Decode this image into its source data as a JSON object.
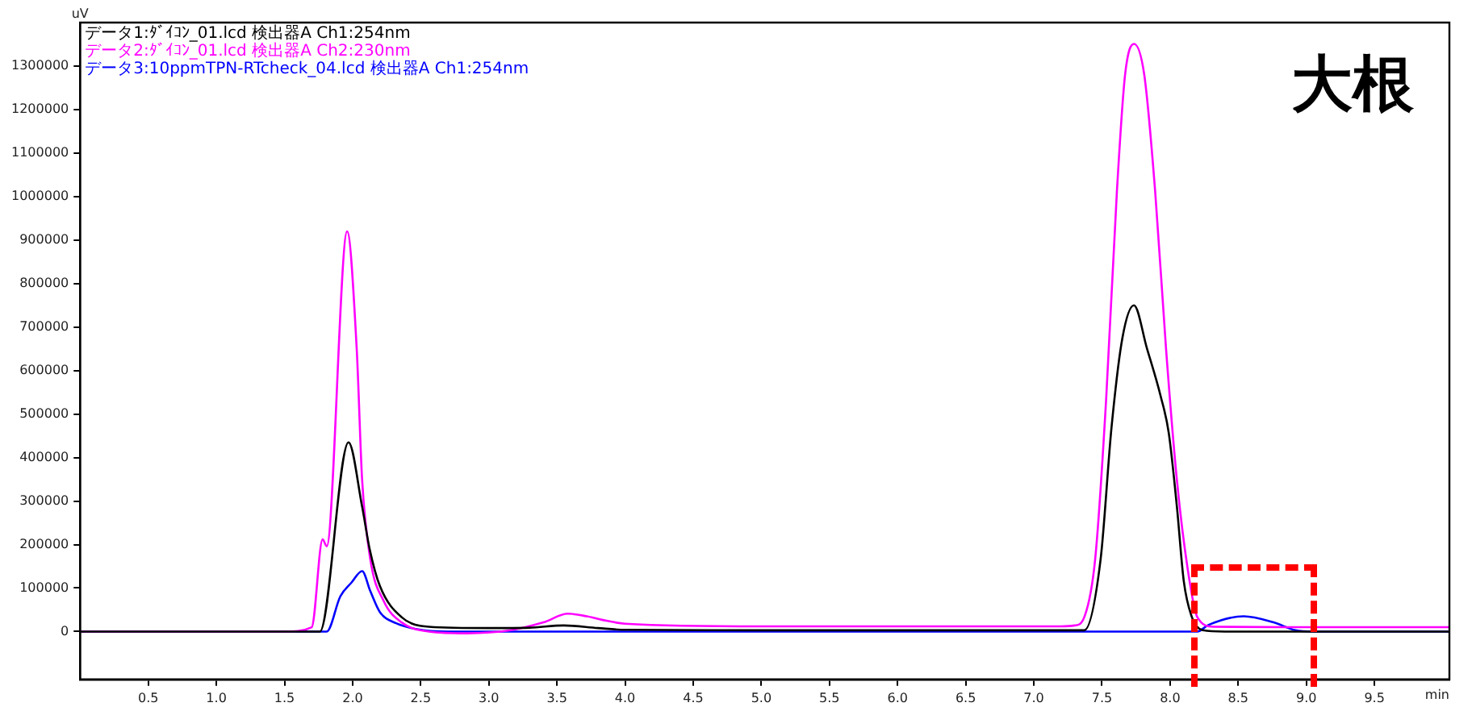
{
  "chart_data": {
    "type": "line",
    "xlabel": "min",
    "ylabel": "uV",
    "annotations": [
      "大根"
    ],
    "legend": "top left",
    "marker": "none",
    "line_style": "solid",
    "grid": false,
    "xlim": [
      0,
      10.05
    ],
    "xticks": [
      {
        "value": 0.5,
        "label": "0.5"
      },
      {
        "value": 1,
        "label": "1.0"
      },
      {
        "value": 1.5,
        "label": "1.5"
      },
      {
        "value": 2,
        "label": "2.0"
      },
      {
        "value": 2.5,
        "label": "2.5"
      },
      {
        "value": 3,
        "label": "3.0"
      },
      {
        "value": 3.5,
        "label": "3.5"
      },
      {
        "value": 4,
        "label": "4.0"
      },
      {
        "value": 4.5,
        "label": "4.5"
      },
      {
        "value": 5,
        "label": "5.0"
      },
      {
        "value": 5.5,
        "label": "5.5"
      },
      {
        "value": 6,
        "label": "6.0"
      },
      {
        "value": 6.5,
        "label": "6.5"
      },
      {
        "value": 7,
        "label": "7.0"
      },
      {
        "value": 7.5,
        "label": "7.5"
      },
      {
        "value": 8,
        "label": "8.0"
      },
      {
        "value": 8.5,
        "label": "8.5"
      },
      {
        "value": 9,
        "label": "9.0"
      },
      {
        "value": 9.5,
        "label": "9.5"
      }
    ],
    "ylim": [
      -110000,
      1400000
    ],
    "yticks": [
      0,
      100000,
      200000,
      300000,
      400000,
      500000,
      600000,
      700000,
      800000,
      900000,
      1000000,
      1100000,
      1200000,
      1300000
    ],
    "series": [
      {
        "name": "データ1:ﾀﾞｲｺﾝ_01.lcd 検出器A Ch1:254nm",
        "color": "#000000",
        "x": [
          0,
          1.5,
          1.76,
          1.97,
          2.07,
          2.125,
          2.2,
          2.36,
          2.56,
          3.0,
          3.3,
          3.55,
          3.8,
          4.0,
          5.0,
          6.0,
          7.0,
          7.3,
          7.37,
          7.49,
          7.57,
          7.65,
          7.735,
          7.83,
          7.93,
          7.99,
          8.05,
          8.1,
          8.16,
          8.24,
          8.4,
          10.05
        ],
        "values": [
          0,
          0,
          0,
          435000,
          287000,
          190000,
          105000,
          33000,
          11000,
          8000,
          9000,
          14000,
          8000,
          4000,
          3000,
          3000,
          3000,
          3000,
          3000,
          166000,
          469000,
          675000,
          750000,
          651000,
          542000,
          457000,
          287000,
          117000,
          33000,
          3000,
          0,
          0
        ]
      },
      {
        "name": "データ2:ﾀﾞｲｺﾝ_01.lcd 検出器A Ch2:230nm",
        "color": "#ff00ff",
        "x": [
          0,
          1.5,
          1.7,
          1.78,
          1.81,
          1.96,
          2.03,
          2.07,
          2.13,
          2.23,
          2.36,
          2.56,
          2.84,
          3.16,
          3.4,
          3.58,
          3.72,
          3.83,
          4.0,
          5.0,
          6.0,
          7.2,
          7.3,
          7.37,
          7.45,
          7.53,
          7.61,
          7.67,
          7.735,
          7.81,
          7.89,
          7.97,
          8.05,
          8.13,
          8.2,
          8.32,
          9.0,
          10.05
        ],
        "values": [
          0,
          0,
          10000,
          212000,
          196000,
          920000,
          651000,
          348000,
          166000,
          69000,
          21000,
          0,
          -4000,
          3000,
          21000,
          41000,
          35000,
          27000,
          18000,
          12000,
          12000,
          12000,
          14000,
          33000,
          166000,
          530000,
          1014000,
          1281000,
          1351000,
          1281000,
          1014000,
          651000,
          348000,
          142000,
          33000,
          11000,
          10000,
          10000
        ]
      },
      {
        "name": "データ3:10ppmTPN-RTcheck_04.lcd 検出器A Ch1:254nm",
        "color": "#0000ff",
        "x": [
          0,
          1.81,
          1.91,
          1.99,
          2.07,
          2.13,
          2.2,
          2.32,
          2.52,
          2.7,
          8.2,
          8.28,
          8.54,
          8.76,
          8.92,
          9.05,
          10.05
        ],
        "values": [
          0,
          0,
          81000,
          112000,
          139000,
          93000,
          45000,
          19000,
          3000,
          0,
          0,
          15000,
          35000,
          21000,
          3000,
          0,
          0
        ]
      }
    ]
  }
}
